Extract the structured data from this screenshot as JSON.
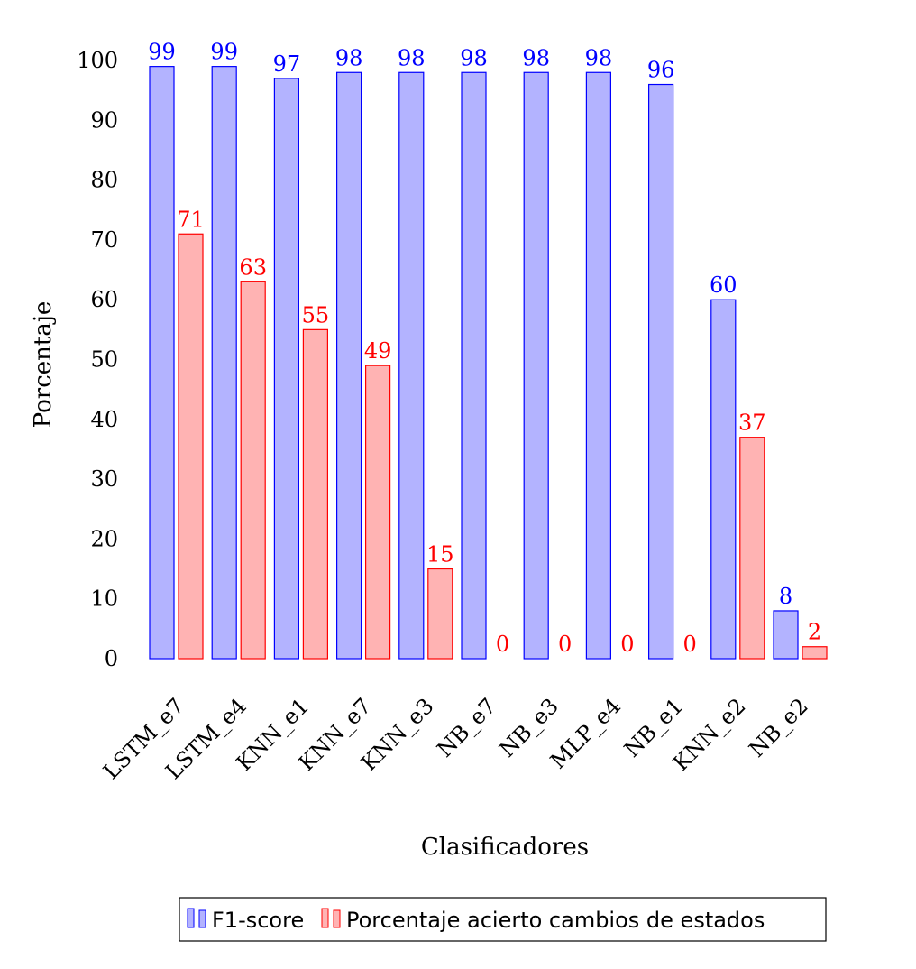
{
  "chart_data": {
    "type": "bar",
    "title": "",
    "xlabel": "Clasificadores",
    "ylabel": "Porcentaje",
    "ylim": [
      0,
      100
    ],
    "yticks": [
      0,
      10,
      20,
      30,
      40,
      50,
      60,
      70,
      80,
      90,
      100
    ],
    "grid": false,
    "legend_position": "bottom",
    "categories": [
      "LSTM_e7",
      "LSTM_e4",
      "KNN_e1",
      "KNN_e7",
      "KNN_e3",
      "NB_e7",
      "NB_e3",
      "MLP_e4",
      "NB_e1",
      "KNN_e2",
      "NB_e2"
    ],
    "series": [
      {
        "name": "F1-score",
        "fill": "#b3b3ff",
        "stroke": "#0000ff",
        "label_color": "#0000ff",
        "values": [
          99,
          99,
          97,
          98,
          98,
          98,
          98,
          98,
          96,
          60,
          8
        ]
      },
      {
        "name": "Porcentaje acierto cambios de estados",
        "fill": "#ffb3b3",
        "stroke": "#ff0000",
        "label_color": "#ff0000",
        "values": [
          71,
          63,
          55,
          49,
          15,
          0,
          0,
          0,
          0,
          37,
          2
        ]
      }
    ]
  }
}
